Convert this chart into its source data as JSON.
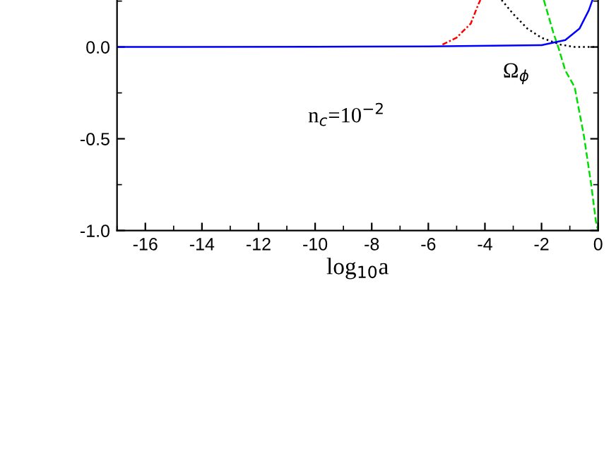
{
  "chart_data": {
    "type": "line",
    "xlabel": "log$_{10}$a",
    "xlim": [
      -17,
      0
    ],
    "ylim": [
      -1.0,
      0.256
    ],
    "xticks": [
      -16,
      -14,
      -12,
      -10,
      -8,
      -6,
      -4,
      -2,
      0,
      {
        "value": -17,
        "label": null
      },
      {
        "value": -15,
        "label": null
      },
      {
        "value": -13,
        "label": null
      },
      {
        "value": -11,
        "label": null
      },
      {
        "value": -9,
        "label": null
      },
      {
        "value": -7,
        "label": null
      },
      {
        "value": -5,
        "label": null
      },
      {
        "value": -3,
        "label": null
      },
      {
        "value": -1,
        "label": null
      }
    ],
    "yticks": [
      {
        "value": -1.0,
        "label": "-1.0"
      },
      {
        "value": -0.5,
        "label": "-0.5"
      },
      {
        "value": 0.0,
        "label": "0.0"
      },
      {
        "value": -0.75,
        "label": null
      },
      {
        "value": -0.25,
        "label": null
      },
      {
        "value": 0.25,
        "label": null
      }
    ],
    "grid": false,
    "legend": false,
    "series": [
      {
        "color": "#ff0000",
        "line_style": "dashdot",
        "x": [
          -5.5,
          -5,
          -4.5,
          -4.24,
          -4.16
        ],
        "values": [
          0.013,
          0.051,
          0.128,
          0.23,
          0.256
        ]
      },
      {
        "color": "#000000",
        "line_style": "dotted",
        "x": [
          -3.41,
          -3,
          -2.5,
          -2,
          -1.33,
          -0.83,
          0
        ],
        "values": [
          0.256,
          0.18,
          0.1,
          0.05,
          0.013,
          0,
          0
        ]
      },
      {
        "color": "#00dd00",
        "line_style": "dashed",
        "x": [
          -1.92,
          -1.58,
          -1.41,
          -1.16,
          -0.83,
          -0.5,
          -0.25,
          -0.08,
          0
        ],
        "values": [
          0.256,
          0.077,
          0,
          -0.128,
          -0.218,
          -0.487,
          -0.744,
          -0.949,
          -1.0
        ]
      },
      {
        "color": "#0000ff",
        "line_style": "solid",
        "x": [
          -17,
          -10,
          -6,
          -2,
          -1.16,
          -0.66,
          -0.33,
          -0.2
        ],
        "values": [
          0,
          0.001,
          0.003,
          0.01,
          0.038,
          0.1,
          0.2,
          0.256
        ]
      }
    ],
    "annotations": [
      "Ω$_{ϕ}$",
      "n$_{c}$=10$^{−2}$"
    ]
  }
}
